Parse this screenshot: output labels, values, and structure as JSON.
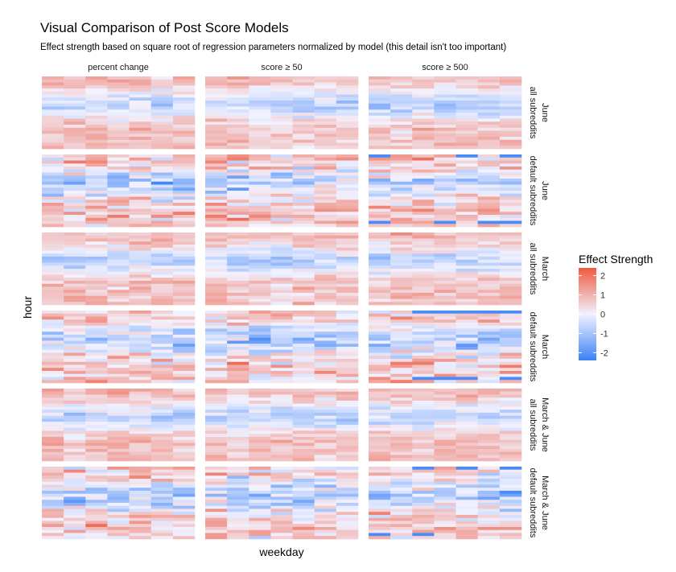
{
  "chart_data": {
    "type": "heatmap",
    "title": "Visual Comparison of Post Score Models",
    "subtitle": "Effect strength based on square root of regression parameters normalized by model (this detail isn't too important)",
    "xlabel": "weekday",
    "ylabel": "hour",
    "columns": [
      "percent change",
      "score ≥ 50",
      "score ≥ 500"
    ],
    "rows": [
      {
        "period": "June",
        "group": "all subreddits"
      },
      {
        "period": "June",
        "group": "default subreddits"
      },
      {
        "period": "March",
        "group": "all subreddits"
      },
      {
        "period": "March",
        "group": "default subreddits"
      },
      {
        "period": "March & June",
        "group": "all subreddits"
      },
      {
        "period": "March & June",
        "group": "default subreddits"
      }
    ],
    "x_count": 7,
    "y_count": 24,
    "legend": {
      "title": "Effect Strength",
      "position": "right",
      "ticks": [
        2,
        1,
        0,
        -1,
        -2
      ],
      "range": [
        -2.4,
        2.4
      ],
      "colors": {
        "low": "#3b82f6",
        "mid": "#f2f2ff",
        "high": "#ef5a40"
      }
    },
    "grid": false
  }
}
